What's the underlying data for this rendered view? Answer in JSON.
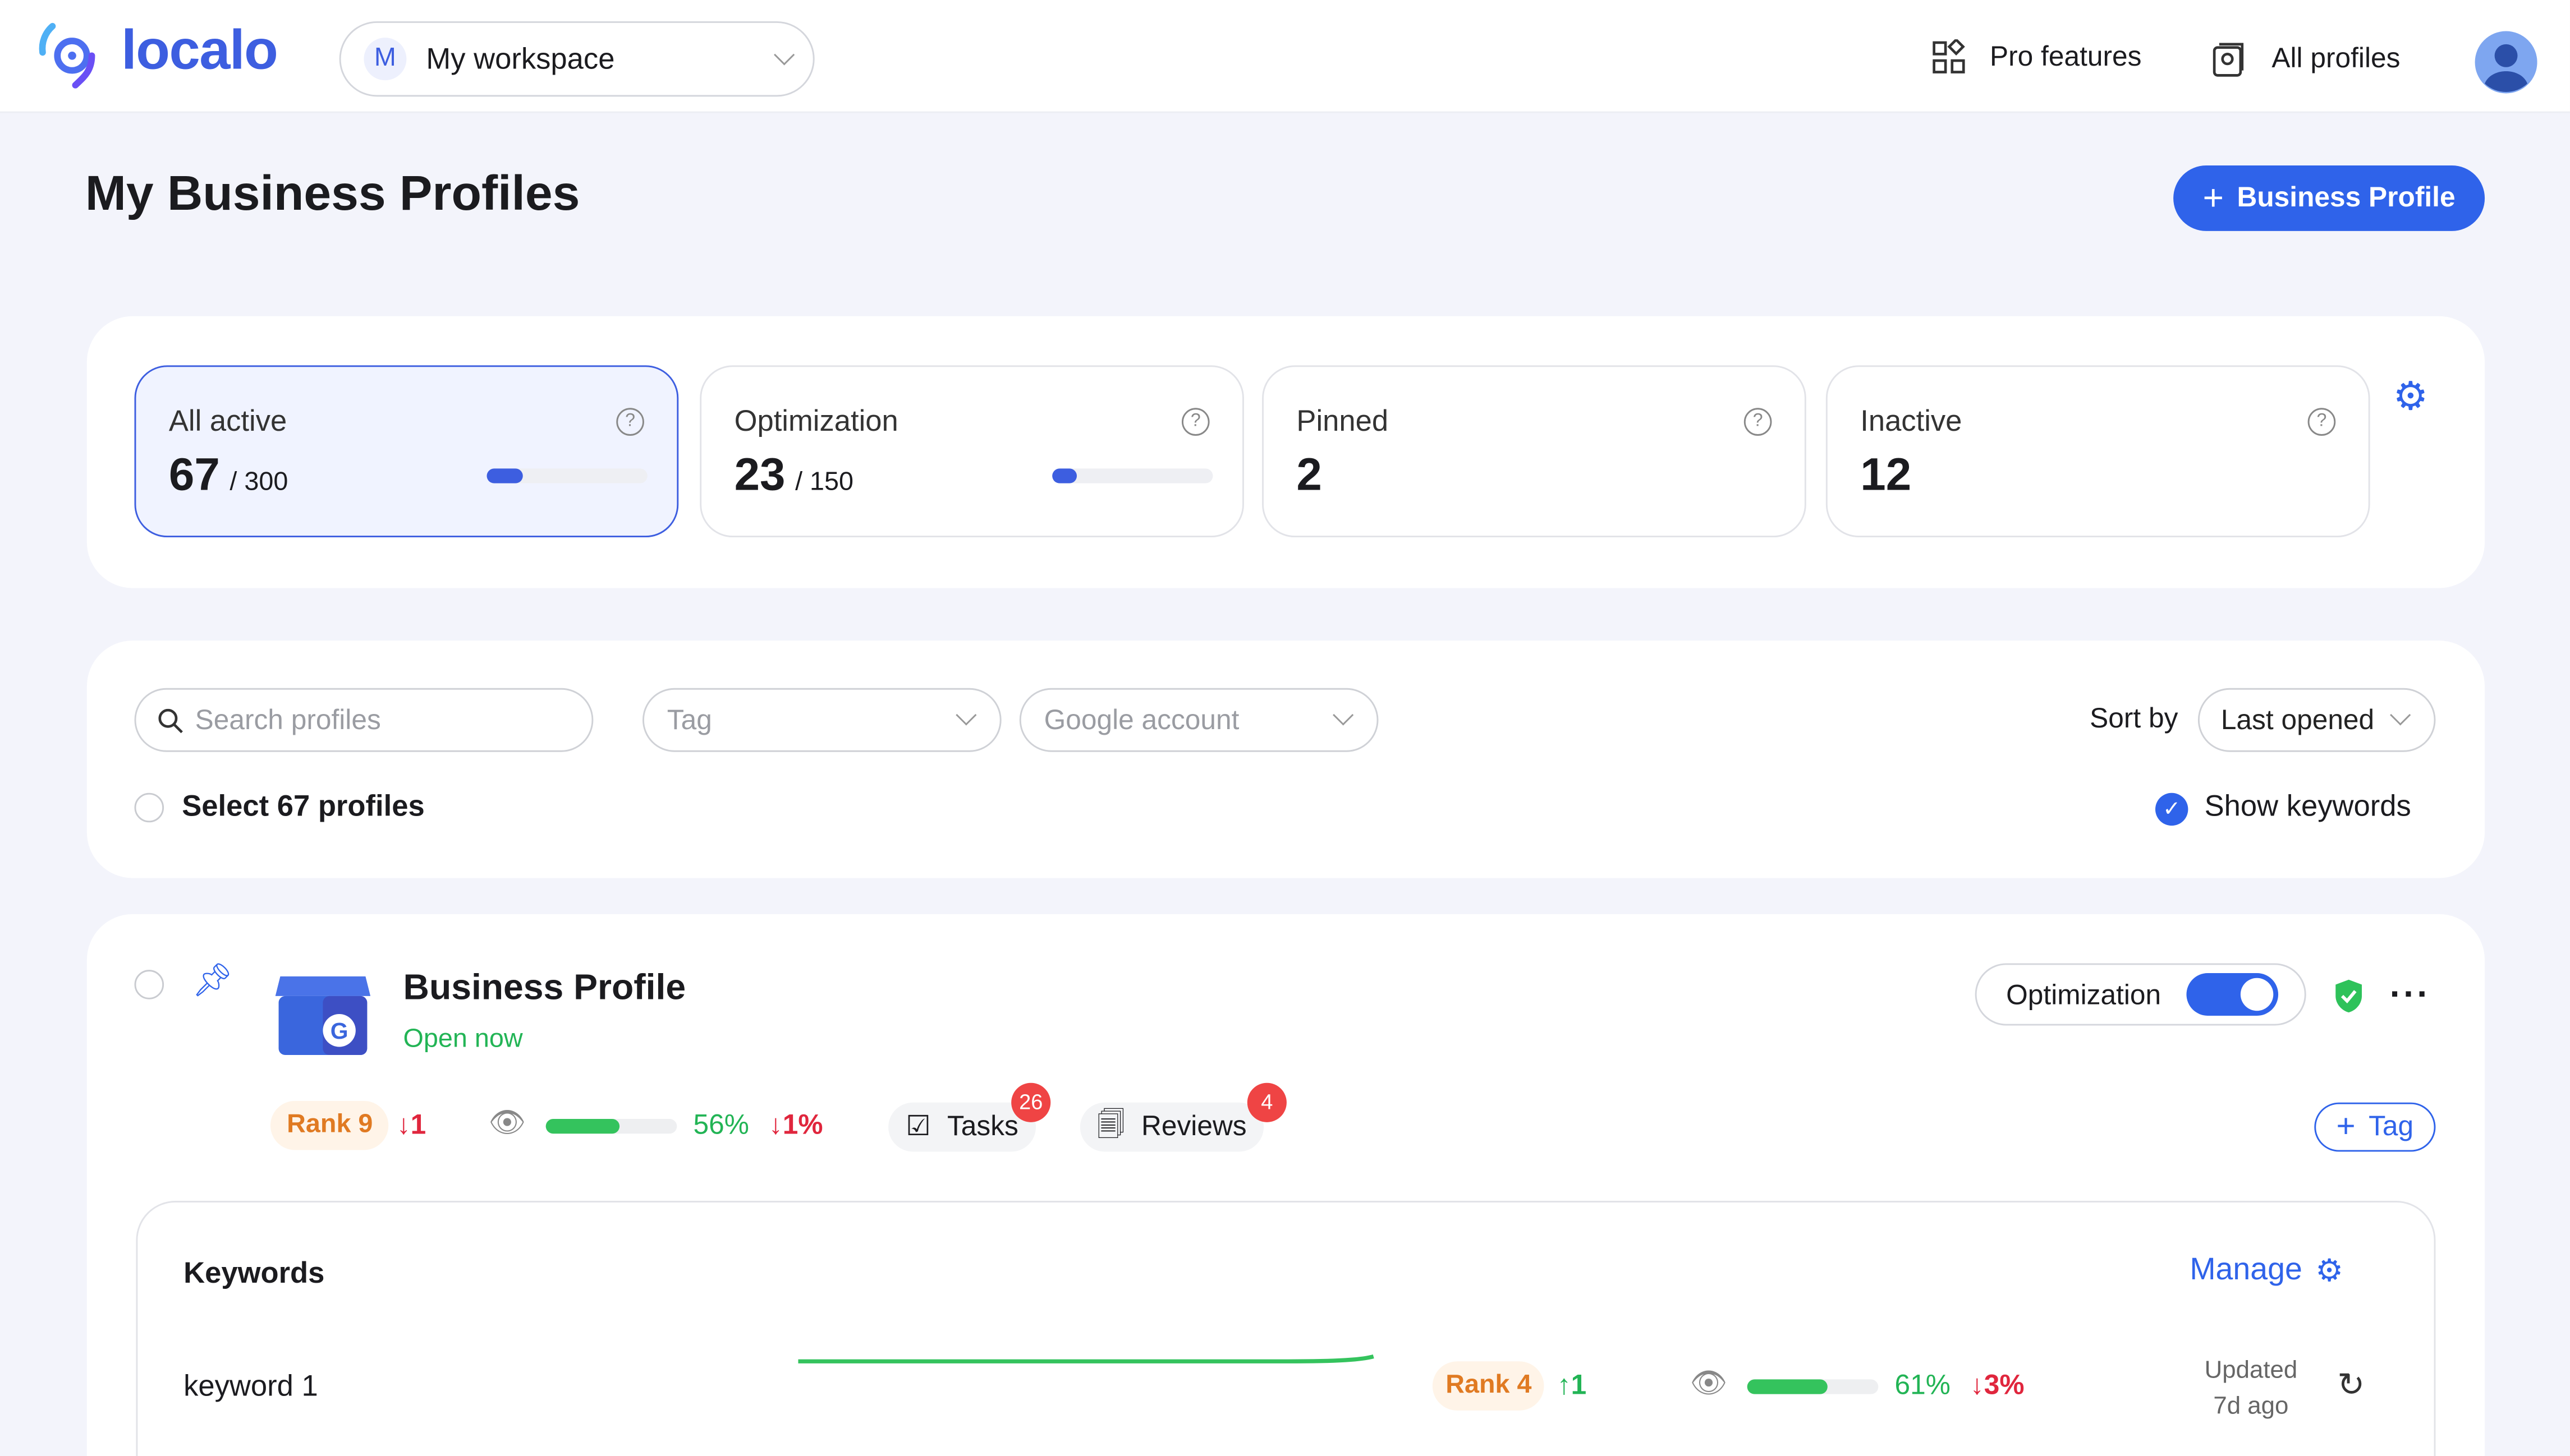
{
  "header": {
    "logo": "localo",
    "workspace": {
      "initial": "M",
      "name": "My workspace"
    },
    "pro_features": "Pro features",
    "all_profiles": "All profiles"
  },
  "page": {
    "title": "My Business Profiles",
    "add_button": "Business Profile"
  },
  "stats": [
    {
      "label": "All active",
      "value": "67",
      "total": "/ 300",
      "progress": 0.22
    },
    {
      "label": "Optimization",
      "value": "23",
      "total": "/ 150",
      "progress": 0.15
    },
    {
      "label": "Pinned",
      "value": "2"
    },
    {
      "label": "Inactive",
      "value": "12"
    }
  ],
  "filters": {
    "search_placeholder": "Search profiles",
    "tag_placeholder": "Tag",
    "google_placeholder": "Google account",
    "sort_label": "Sort by",
    "sort_value": "Last opened",
    "select_all": "Select 67 profiles",
    "show_keywords": "Show keywords",
    "show_keywords_checked": true
  },
  "profile": {
    "name": "Business Profile",
    "status": "Open now",
    "optimization_label": "Optimization",
    "optimization_on": true,
    "rank": "Rank 9",
    "rank_change": "1",
    "visibility": "56%",
    "visibility_value": 0.56,
    "visibility_change": "1%",
    "tasks": "Tasks",
    "tasks_count": "26",
    "reviews": "Reviews",
    "reviews_count": "4",
    "tag_button": "Tag"
  },
  "keywords": {
    "title": "Keywords",
    "manage": "Manage",
    "rows": [
      {
        "name": "keyword 1",
        "rank": "Rank 4",
        "rank_change": "1",
        "visibility": "61%",
        "visibility_value": 0.61,
        "visibility_change": "3%",
        "updated": "Updated",
        "updated_ago": "7d ago"
      }
    ]
  },
  "colors": {
    "accent": "#2f63ea",
    "green": "#22b455",
    "red": "#e0263d",
    "rank_bg": "#fff4e8",
    "rank_text": "#e07a22"
  }
}
